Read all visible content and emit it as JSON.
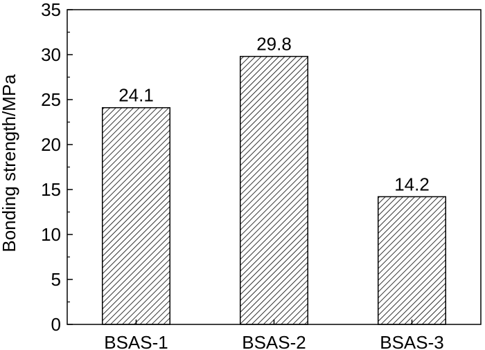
{
  "chart_data": {
    "type": "bar",
    "categories": [
      "BSAS-1",
      "BSAS-2",
      "BSAS-3"
    ],
    "values": [
      24.1,
      29.8,
      14.2
    ],
    "data_labels": [
      "24.1",
      "29.8",
      "14.2"
    ],
    "title": "",
    "xlabel": "",
    "ylabel": "Bonding strength/MPa",
    "ylim": [
      0,
      35
    ],
    "yticks": [
      0,
      5,
      10,
      15,
      20,
      25,
      30,
      35
    ],
    "minor_yticks": true,
    "grid": false,
    "legend": "none",
    "bar_fill": "hatched",
    "bar_fill_pattern": "diagonal-lines",
    "bar_color": "#ffffff",
    "hatch_color": "#000000",
    "axis_color": "#000000"
  }
}
